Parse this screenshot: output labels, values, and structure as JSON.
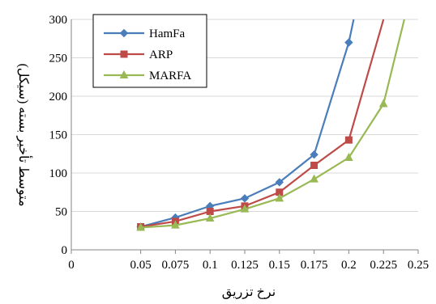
{
  "chart_data": {
    "type": "line",
    "title": "",
    "xlabel": "نرخ تزریق",
    "ylabel": "متوسط تأخیر بسته (سیکل)",
    "xlim": [
      0,
      0.25
    ],
    "ylim": [
      0,
      300
    ],
    "xticks": [
      "0",
      "0.05",
      "0.075",
      "0.1",
      "0.125",
      "0.15",
      "0.175",
      "0.2",
      "0.225",
      "0.25"
    ],
    "yticks": [
      "0",
      "50",
      "100",
      "150",
      "200",
      "250",
      "300"
    ],
    "grid": "horizontal",
    "legend_position": "top-left",
    "series": [
      {
        "name": "HamFa",
        "color": "#4A7EBB",
        "marker": "diamond",
        "x": [
          0.05,
          0.075,
          0.1,
          0.125,
          0.15,
          0.175,
          0.2,
          0.2035
        ],
        "y": [
          30,
          42,
          57,
          67,
          88,
          124,
          270,
          300
        ]
      },
      {
        "name": "ARP",
        "color": "#BE4B48",
        "marker": "square",
        "x": [
          0.05,
          0.075,
          0.1,
          0.125,
          0.15,
          0.175,
          0.2,
          0.225
        ],
        "y": [
          30,
          37,
          50,
          57,
          75,
          110,
          143,
          300
        ]
      },
      {
        "name": "MARFA",
        "color": "#98B954",
        "marker": "triangle",
        "x": [
          0.05,
          0.075,
          0.1,
          0.125,
          0.15,
          0.175,
          0.2,
          0.225,
          0.24
        ],
        "y": [
          29,
          32,
          41,
          53,
          67,
          92,
          120,
          190,
          300
        ]
      }
    ]
  }
}
